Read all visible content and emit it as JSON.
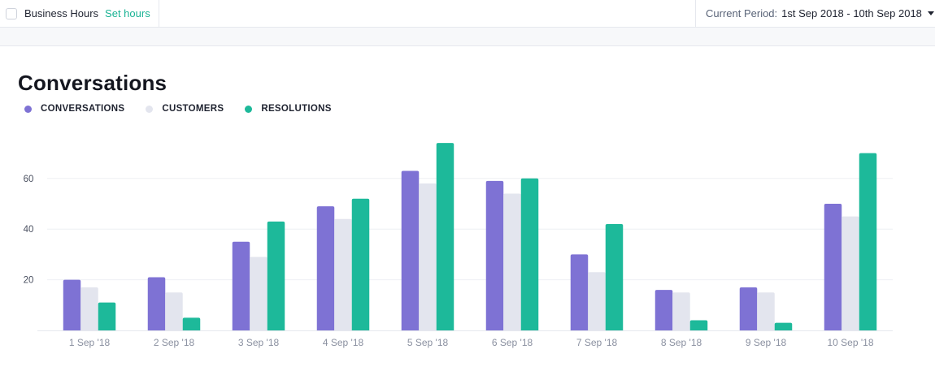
{
  "header": {
    "business_hours_label": "Business Hours",
    "set_hours_label": "Set hours",
    "period_label": "Current Period:",
    "period_value": "1st Sep 2018 - 10th Sep 2018"
  },
  "chart_data": {
    "type": "bar",
    "title": "Conversations",
    "categories": [
      "1 Sep '18",
      "2 Sep '18",
      "3 Sep '18",
      "4 Sep '18",
      "5 Sep '18",
      "6 Sep '18",
      "7 Sep '18",
      "8 Sep '18",
      "9 Sep '18",
      "10 Sep '18"
    ],
    "series": [
      {
        "name": "CONVERSATIONS",
        "color": "#7e72d4",
        "values": [
          20,
          21,
          35,
          49,
          63,
          59,
          30,
          16,
          17,
          50
        ]
      },
      {
        "name": "CUSTOMERS",
        "color": "#e3e5ee",
        "values": [
          17,
          15,
          29,
          44,
          58,
          54,
          23,
          15,
          15,
          45
        ]
      },
      {
        "name": "RESOLUTIONS",
        "color": "#1db99a",
        "values": [
          11,
          5,
          43,
          52,
          74,
          60,
          42,
          4,
          3,
          70
        ]
      }
    ],
    "yticks": [
      20,
      40,
      60
    ],
    "ylim": [
      0,
      80
    ],
    "grid": true,
    "legend_position": "top-left"
  }
}
